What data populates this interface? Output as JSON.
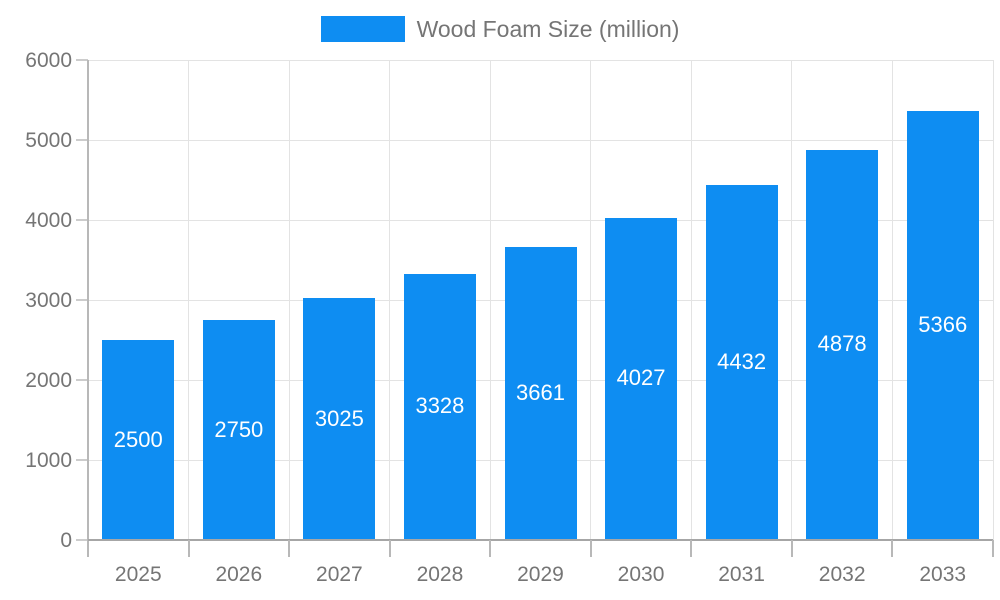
{
  "legend": {
    "label": "Wood Foam Size (million)"
  },
  "chart_data": {
    "type": "bar",
    "title": "Wood Foam Size (million)",
    "categories": [
      "2025",
      "2026",
      "2027",
      "2028",
      "2029",
      "2030",
      "2031",
      "2032",
      "2033"
    ],
    "values": [
      2500,
      2750,
      3025,
      3328,
      3661,
      4027,
      4432,
      4878,
      5366
    ],
    "series": [
      {
        "name": "Wood Foam Size (million)",
        "values": [
          2500,
          2750,
          3025,
          3328,
          3661,
          4027,
          4432,
          4878,
          5366
        ]
      }
    ],
    "xlabel": "",
    "ylabel": "",
    "ylim": [
      0,
      6000
    ],
    "ytick_step": 1000,
    "ytick_labels": [
      "0",
      "1000",
      "2000",
      "3000",
      "4000",
      "5000",
      "6000"
    ],
    "grid": true,
    "legend_position": "top",
    "value_labels": "inside-center",
    "colors": {
      "bar": "#0e8df2",
      "value_text": "#ffffff",
      "axis_text": "#757575",
      "gridline": "#e3e3e3",
      "axis_line": "#b8b8b8",
      "zero_line": "#a6a6a6",
      "tick": "#cccccc",
      "background": "#ffffff"
    }
  }
}
